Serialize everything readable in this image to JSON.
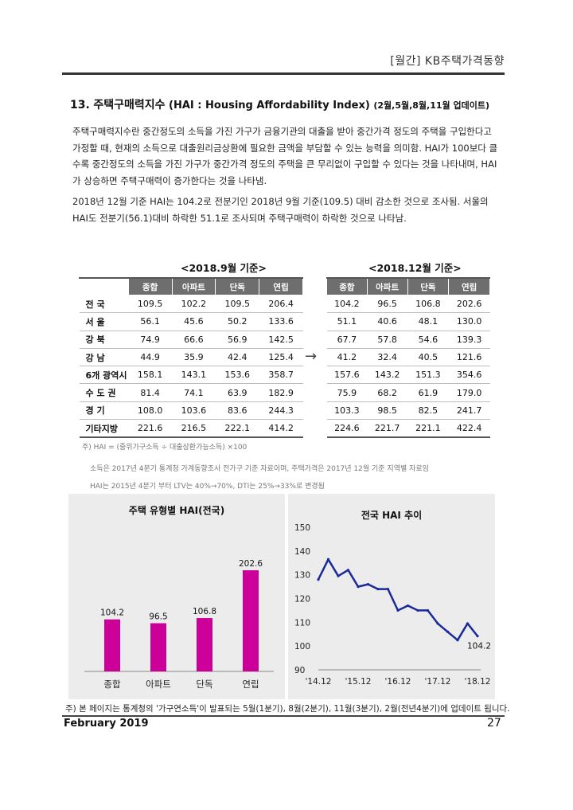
{
  "header": {
    "title": "[월간] KB주택가격동향"
  },
  "section": {
    "number": "13.",
    "title_ko": "주택구매력지수",
    "title_en": "(HAI : Housing Affordability Index)",
    "update_note": "(2월,5월,8월,11월 업데이트)"
  },
  "paragraphs": [
    "주택구매력지수란 중간정도의 소득을 가진 가구가 금융기관의 대출을 받아 중간가격 정도의 주택을 구입한다고 가정할 때, 현재의 소득으로 대출원리금상환에 필요한 금액을 부담할 수 있는 능력을 의미함. HAI가 100보다 클수록 중간정도의 소득을 가진 가구가 중간가격 정도의 주택을 큰 무리없이 구입할 수 있다는 것을 나타내며, HAI가 상승하면 주택구매력이 증가한다는 것을 나타냄.",
    "2018년 12월 기준 HAI는 104.2로 전분기인 2018년 9월 기준(109.5) 대비 감소한 것으로 조사됨. 서울의 HAI도 전분기(56.1)대비 하락한 51.1로 조사되며 주택구매력이 하락한 것으로 나타남."
  ],
  "tables": {
    "left_caption": "<2018.9월 기준>",
    "right_caption": "<2018.12월 기준>",
    "columns": [
      "종합",
      "아파트",
      "단독",
      "연립"
    ],
    "rows": [
      {
        "label": "전 국",
        "sep": [
          109.5,
          102.2,
          109.5,
          206.4
        ],
        "dec": [
          104.2,
          96.5,
          106.8,
          202.6
        ]
      },
      {
        "label": "서 울",
        "sep": [
          56.1,
          45.6,
          50.2,
          133.6
        ],
        "dec": [
          51.1,
          40.6,
          48.1,
          130.0
        ]
      },
      {
        "label": "강 북",
        "sep": [
          74.9,
          66.6,
          56.9,
          142.5
        ],
        "dec": [
          67.7,
          57.8,
          54.6,
          139.3
        ]
      },
      {
        "label": "강 남",
        "sep": [
          44.9,
          35.9,
          42.4,
          125.4
        ],
        "dec": [
          41.2,
          32.4,
          40.5,
          121.6
        ]
      },
      {
        "label": "6개 광역시",
        "sep": [
          158.1,
          143.1,
          153.6,
          358.7
        ],
        "dec": [
          157.6,
          143.2,
          151.3,
          354.6
        ]
      },
      {
        "label": "수 도 권",
        "sep": [
          81.4,
          74.1,
          63.9,
          182.9
        ],
        "dec": [
          75.9,
          68.2,
          61.9,
          179.0
        ]
      },
      {
        "label": "경 기",
        "sep": [
          108.0,
          103.6,
          83.6,
          244.3
        ],
        "dec": [
          103.3,
          98.5,
          82.5,
          241.7
        ]
      },
      {
        "label": "기타지방",
        "sep": [
          221.6,
          216.5,
          222.1,
          414.2
        ],
        "dec": [
          224.6,
          221.7,
          221.1,
          422.4
        ]
      }
    ],
    "arrow": "→",
    "notes": [
      "주) HAI = (중위가구소득 ÷ 대출상환가능소득) ×100",
      "소득은 2017년 4분기 통계청 가계동향조사 전가구 기준 자료이며, 주택가격은 2017년 12월 기준 지역별 자료임",
      "HAI는 2015년 4분기 부터 LTV는 40%→70%, DTI는 25%→33%로 변경됨"
    ]
  },
  "chart_data": [
    {
      "type": "bar",
      "title": "주택 유형별 HAI(전국)",
      "categories": [
        "종합",
        "아파트",
        "단독",
        "연립"
      ],
      "values": [
        104.2,
        96.5,
        106.8,
        202.6
      ],
      "ylim": [
        0,
        260
      ],
      "color": "#cc0099"
    },
    {
      "type": "line",
      "title": "전국 HAI 추이",
      "x": [
        "'14.12",
        "'15.3",
        "'15.6",
        "'15.9",
        "'15.12",
        "'16.3",
        "'16.6",
        "'16.9",
        "'16.12",
        "'17.3",
        "'17.6",
        "'17.9",
        "'17.12",
        "'18.3",
        "'18.6",
        "'18.9",
        "'18.12"
      ],
      "x_tick_labels": [
        "'14.12",
        "'15.12",
        "'16.12",
        "'17.12",
        "'18.12"
      ],
      "values": [
        128.0,
        136.5,
        129.5,
        132.0,
        125.0,
        126.0,
        124.0,
        124.0,
        115.0,
        117.0,
        115.0,
        115.0,
        109.5,
        106.0,
        102.5,
        109.5,
        104.2
      ],
      "ylim": [
        90,
        150
      ],
      "yticks": [
        90,
        100,
        110,
        120,
        130,
        140,
        150
      ],
      "end_label": "104.2",
      "color": "#1a2a9a"
    }
  ],
  "footer": {
    "note": "주) 본 페이지는 통계청의 '가구연소득'이 발표되는 5월(1분기), 8월(2분기), 11월(3분기), 2월(전년4분기)에 업데이트 됩니다.",
    "date": "February 2019",
    "page": "27"
  }
}
